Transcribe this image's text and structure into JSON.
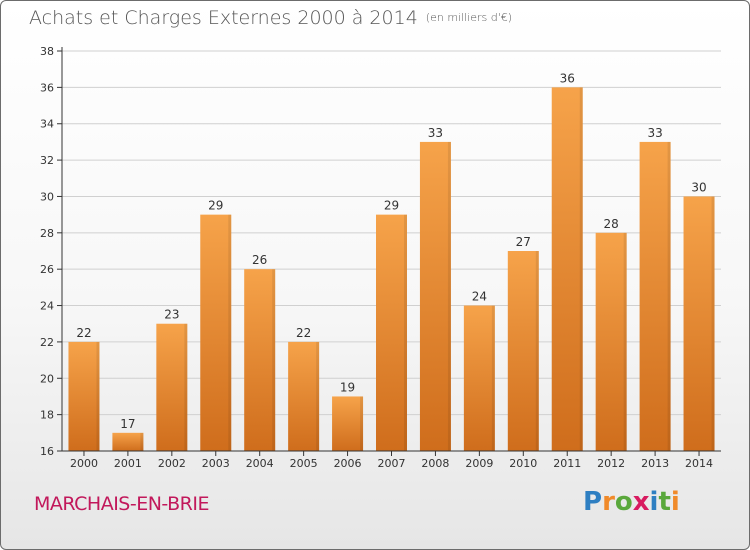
{
  "title": "Achats et Charges Externes 2000 à 2014",
  "subtitle": "(en milliers d'€)",
  "town": "MARCHAIS-EN-BRIE",
  "brand": {
    "letters": [
      "P",
      "r",
      "o",
      "x",
      "i",
      "t",
      "i"
    ],
    "colors": [
      "#2e7fc2",
      "#f08a2a",
      "#5aa83c",
      "#d81b60",
      "#2e7fc2",
      "#5aa83c",
      "#f08a2a"
    ]
  },
  "colors": {
    "bar_top": "#f6a34a",
    "bar_bottom": "#cf6d1c",
    "axis": "#333333",
    "grid": "#d0d0d0"
  },
  "chart_data": {
    "type": "bar",
    "categories": [
      "2000",
      "2001",
      "2002",
      "2003",
      "2004",
      "2005",
      "2006",
      "2007",
      "2008",
      "2009",
      "2010",
      "2011",
      "2012",
      "2013",
      "2014"
    ],
    "values": [
      22,
      17,
      23,
      29,
      26,
      22,
      19,
      29,
      33,
      24,
      27,
      36,
      28,
      33,
      30
    ],
    "xlabel": "",
    "ylabel": "",
    "ylim": [
      16,
      38
    ],
    "yticks": [
      16,
      18,
      20,
      22,
      24,
      26,
      28,
      30,
      32,
      34,
      36,
      38
    ],
    "grid": true,
    "legend": "none"
  }
}
